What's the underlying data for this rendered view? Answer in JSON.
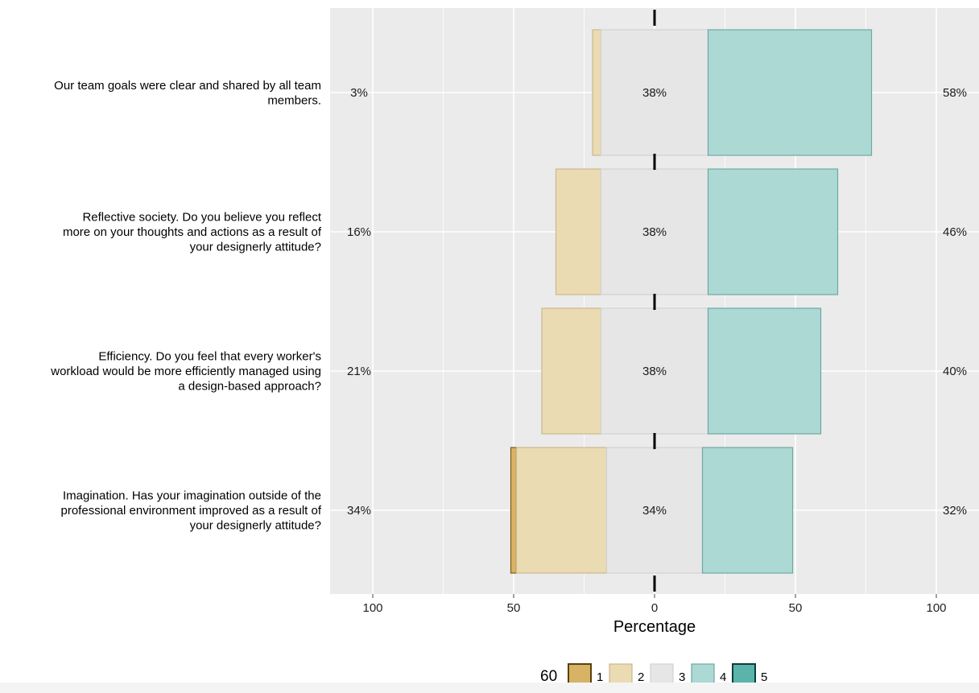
{
  "colors": {
    "panel_bg": "#ebebeb",
    "grid": "#ffffff",
    "level_1": "#d8b365",
    "level_1_stroke": "#7a5a1a",
    "level_2": "#ebdbb2",
    "level_3": "#e6e6e6",
    "level_4": "#acd9d4",
    "level_4_stroke": "#6fa8a2",
    "level_5": "#5ab4ac",
    "level_5_stroke": "#1b5c56"
  },
  "chart_data": {
    "type": "bar",
    "subtype": "diverging-stacked-likert",
    "orientation": "horizontal",
    "xlabel": "Percentage",
    "ylabel": "",
    "xlim": [
      -115,
      115
    ],
    "xticks": [
      -100,
      -50,
      0,
      50,
      100
    ],
    "xtick_labels": [
      "100",
      "50",
      "0",
      "50",
      "100"
    ],
    "grid": true,
    "legend": {
      "title": "60",
      "position": "bottom",
      "levels": [
        "1",
        "2",
        "3",
        "4",
        "5"
      ]
    },
    "items": [
      {
        "label_lines": [
          "Our team goals were clear and shared by all team",
          "members."
        ],
        "values": [
          0,
          3,
          38,
          58,
          0
        ],
        "left_label": "3%",
        "center_label": "38%",
        "right_label": "58%"
      },
      {
        "label_lines": [
          "Reflective society. Do you believe you reflect",
          "more on your thoughts and actions as a result of",
          "your designerly attitude?"
        ],
        "values": [
          0,
          16,
          38,
          46,
          0
        ],
        "left_label": "16%",
        "center_label": "38%",
        "right_label": "46%"
      },
      {
        "label_lines": [
          "Efficiency. Do you feel that every worker's",
          "workload would be more efficiently managed using",
          "a design-based approach?"
        ],
        "values": [
          0,
          21,
          38,
          40,
          0
        ],
        "left_label": "21%",
        "center_label": "38%",
        "right_label": "40%"
      },
      {
        "label_lines": [
          "Imagination. Has your imagination outside of the",
          "professional environment improved as a result of",
          "your designerly attitude?"
        ],
        "values": [
          2,
          32,
          34,
          32,
          0
        ],
        "left_label": "34%",
        "center_label": "34%",
        "right_label": "32%"
      }
    ]
  }
}
